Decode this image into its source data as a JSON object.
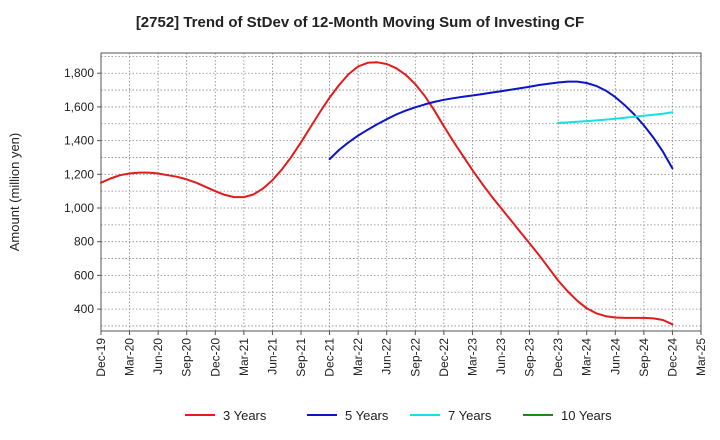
{
  "chart_data": {
    "type": "line",
    "title": "[2752]  Trend of StDev of 12-Month Moving Sum of Investing CF",
    "xlabel": "",
    "ylabel": "Amount (million yen)",
    "x_ticks": [
      "Dec-19",
      "Mar-20",
      "Jun-20",
      "Sep-20",
      "Dec-20",
      "Mar-21",
      "Jun-21",
      "Sep-21",
      "Dec-21",
      "Mar-22",
      "Jun-22",
      "Sep-22",
      "Dec-22",
      "Mar-23",
      "Jun-23",
      "Sep-23",
      "Dec-23",
      "Mar-24",
      "Jun-24",
      "Sep-24",
      "Dec-24",
      "Mar-25"
    ],
    "y_ticks": [
      400,
      600,
      800,
      1000,
      1200,
      1400,
      1600,
      1800
    ],
    "y_tick_labels": [
      "400",
      "600",
      "800",
      "1,000",
      "1,200",
      "1,400",
      "1,600",
      "1,800"
    ],
    "ylim": [
      270,
      1920
    ],
    "grid": true,
    "legend_position": "bottom",
    "series": [
      {
        "name": "3 Years",
        "color": "#e41a1c",
        "points": [
          [
            "Dec-19",
            1150
          ],
          [
            "Jan-20",
            1175
          ],
          [
            "Feb-20",
            1195
          ],
          [
            "Mar-20",
            1205
          ],
          [
            "Apr-20",
            1210
          ],
          [
            "May-20",
            1210
          ],
          [
            "Jun-20",
            1205
          ],
          [
            "Jul-20",
            1195
          ],
          [
            "Aug-20",
            1185
          ],
          [
            "Sep-20",
            1170
          ],
          [
            "Oct-20",
            1150
          ],
          [
            "Nov-20",
            1125
          ],
          [
            "Dec-20",
            1100
          ],
          [
            "Jan-21",
            1078
          ],
          [
            "Feb-21",
            1065
          ],
          [
            "Mar-21",
            1065
          ],
          [
            "Apr-21",
            1080
          ],
          [
            "May-21",
            1115
          ],
          [
            "Jun-21",
            1165
          ],
          [
            "Jul-21",
            1230
          ],
          [
            "Aug-21",
            1305
          ],
          [
            "Sep-21",
            1390
          ],
          [
            "Oct-21",
            1480
          ],
          [
            "Nov-21",
            1570
          ],
          [
            "Dec-21",
            1655
          ],
          [
            "Jan-22",
            1730
          ],
          [
            "Feb-22",
            1795
          ],
          [
            "Mar-22",
            1840
          ],
          [
            "Apr-22",
            1862
          ],
          [
            "May-22",
            1865
          ],
          [
            "Jun-22",
            1855
          ],
          [
            "Jul-22",
            1830
          ],
          [
            "Aug-22",
            1790
          ],
          [
            "Sep-22",
            1735
          ],
          [
            "Oct-22",
            1665
          ],
          [
            "Nov-22",
            1580
          ],
          [
            "Dec-22",
            1485
          ],
          [
            "Jan-23",
            1395
          ],
          [
            "Feb-23",
            1310
          ],
          [
            "Mar-23",
            1225
          ],
          [
            "Apr-23",
            1145
          ],
          [
            "May-23",
            1070
          ],
          [
            "Jun-23",
            1000
          ],
          [
            "Jul-23",
            930
          ],
          [
            "Aug-23",
            860
          ],
          [
            "Sep-23",
            790
          ],
          [
            "Oct-23",
            720
          ],
          [
            "Nov-23",
            645
          ],
          [
            "Dec-23",
            570
          ],
          [
            "Jan-24",
            505
          ],
          [
            "Feb-24",
            450
          ],
          [
            "Mar-24",
            405
          ],
          [
            "Apr-24",
            375
          ],
          [
            "May-24",
            358
          ],
          [
            "Jun-24",
            350
          ],
          [
            "Jul-24",
            348
          ],
          [
            "Aug-24",
            348
          ],
          [
            "Sep-24",
            348
          ],
          [
            "Oct-24",
            345
          ],
          [
            "Nov-24",
            335
          ],
          [
            "Dec-24",
            310
          ]
        ]
      },
      {
        "name": "5 Years",
        "color": "#0a14c8",
        "points": [
          [
            "Dec-21",
            1290
          ],
          [
            "Jan-22",
            1345
          ],
          [
            "Feb-22",
            1390
          ],
          [
            "Mar-22",
            1430
          ],
          [
            "Apr-22",
            1465
          ],
          [
            "May-22",
            1497
          ],
          [
            "Jun-22",
            1527
          ],
          [
            "Jul-22",
            1555
          ],
          [
            "Aug-22",
            1578
          ],
          [
            "Sep-22",
            1598
          ],
          [
            "Oct-22",
            1615
          ],
          [
            "Nov-22",
            1630
          ],
          [
            "Dec-22",
            1642
          ],
          [
            "Jan-23",
            1652
          ],
          [
            "Feb-23",
            1660
          ],
          [
            "Mar-23",
            1668
          ],
          [
            "Apr-23",
            1676
          ],
          [
            "May-23",
            1685
          ],
          [
            "Jun-23",
            1693
          ],
          [
            "Jul-23",
            1702
          ],
          [
            "Aug-23",
            1711
          ],
          [
            "Sep-23",
            1720
          ],
          [
            "Oct-23",
            1730
          ],
          [
            "Nov-23",
            1738
          ],
          [
            "Dec-23",
            1745
          ],
          [
            "Jan-24",
            1750
          ],
          [
            "Feb-24",
            1750
          ],
          [
            "Mar-24",
            1742
          ],
          [
            "Apr-24",
            1725
          ],
          [
            "May-24",
            1697
          ],
          [
            "Jun-24",
            1658
          ],
          [
            "Jul-24",
            1610
          ],
          [
            "Aug-24",
            1555
          ],
          [
            "Sep-24",
            1490
          ],
          [
            "Oct-24",
            1418
          ],
          [
            "Nov-24",
            1335
          ],
          [
            "Dec-24",
            1235
          ]
        ]
      },
      {
        "name": "7 Years",
        "color": "#17e0e6",
        "points": [
          [
            "Dec-23",
            1505
          ],
          [
            "Jan-24",
            1508
          ],
          [
            "Feb-24",
            1512
          ],
          [
            "Mar-24",
            1516
          ],
          [
            "Apr-24",
            1520
          ],
          [
            "May-24",
            1525
          ],
          [
            "Jun-24",
            1530
          ],
          [
            "Jul-24",
            1536
          ],
          [
            "Aug-24",
            1542
          ],
          [
            "Sep-24",
            1548
          ],
          [
            "Oct-24",
            1554
          ],
          [
            "Nov-24",
            1560
          ],
          [
            "Dec-24",
            1568
          ]
        ]
      },
      {
        "name": "10 Years",
        "color": "#1a8a1a",
        "points": []
      }
    ]
  }
}
